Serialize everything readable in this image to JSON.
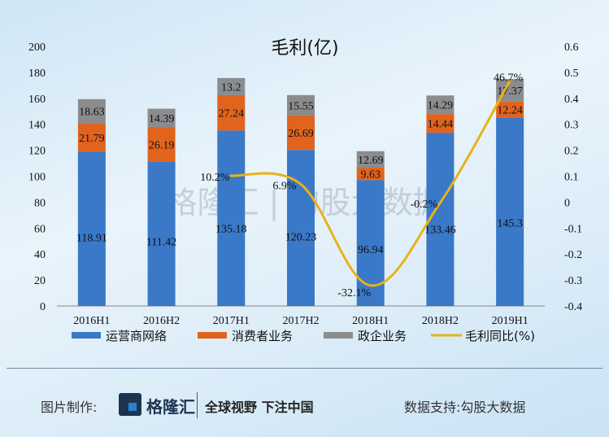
{
  "chart_data": {
    "type": "bar",
    "stacked": true,
    "title": "毛利(亿)",
    "categories": [
      "2016H1",
      "2016H2",
      "2017H1",
      "2017H2",
      "2018H1",
      "2018H2",
      "2019H1"
    ],
    "series": [
      {
        "name": "运营商网络",
        "color": "#3a78c8",
        "values": [
          118.91,
          111.42,
          135.18,
          120.23,
          96.94,
          133.46,
          145.3
        ],
        "labels": [
          "118.91",
          "111.42",
          "135.18",
          "120.23",
          "96.94",
          "133.46",
          "145.3"
        ]
      },
      {
        "name": "消费者业务",
        "color": "#e0641e",
        "values": [
          21.79,
          26.19,
          27.24,
          26.69,
          9.63,
          14.44,
          12.24
        ],
        "labels": [
          "21.79",
          "26.19",
          "27.24",
          "26.69",
          "9.63",
          "14.44",
          "12.24"
        ]
      },
      {
        "name": "政企业务",
        "color": "#8a8c8e",
        "values": [
          18.63,
          14.39,
          13.2,
          15.55,
          12.69,
          14.29,
          17.37
        ],
        "labels": [
          "18.63",
          "14.39",
          "13.2",
          "15.55",
          "12.69",
          "14.29",
          "17.37"
        ]
      }
    ],
    "line": {
      "name": "毛利同比(%)",
      "color": "#e8b21a",
      "axis": "right",
      "values": [
        null,
        null,
        0.102,
        0.069,
        -0.321,
        -0.002,
        0.467
      ],
      "labels": [
        "",
        "",
        "10.2%",
        "6.9%",
        "-32.1%",
        "-0.2%",
        "46.7%"
      ]
    },
    "ylim": [
      0,
      200
    ],
    "yticks": [
      "0",
      "20",
      "40",
      "60",
      "80",
      "100",
      "120",
      "140",
      "160",
      "180",
      "200"
    ],
    "y2lim": [
      -0.4,
      0.6
    ],
    "y2ticks": [
      "-0.4",
      "-0.3",
      "-0.2",
      "-0.1",
      "0",
      "0.1",
      "0.2",
      "0.3",
      "0.4",
      "0.5",
      "0.6"
    ],
    "legend": "bottom",
    "grid": false
  },
  "watermark": "格隆汇 | 勾股大数据",
  "footer": {
    "made_by": "图片制作:",
    "logo_text": "格隆汇",
    "slogan": "全球视野 下注中国",
    "data_support": "数据支持:勾股大数据"
  }
}
